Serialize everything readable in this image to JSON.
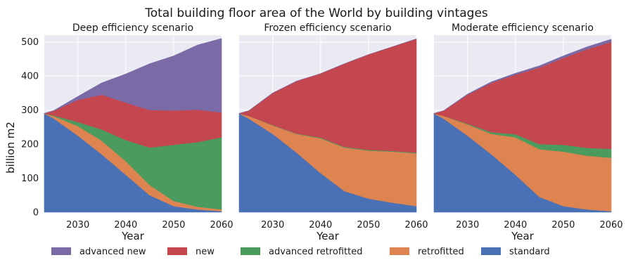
{
  "title": "Total building floor area of the World by building vintages",
  "ylabel": "billion m2",
  "xlabel": "Year",
  "legend": [
    {
      "key": "advanced_new",
      "label": "advanced new",
      "color": "#7a6aa6"
    },
    {
      "key": "new",
      "label": "new",
      "color": "#c44750"
    },
    {
      "key": "advanced_retrofitted",
      "label": "advanced retrofitted",
      "color": "#4a9b5d"
    },
    {
      "key": "retrofitted",
      "label": "retrofitted",
      "color": "#dd8451"
    },
    {
      "key": "standard",
      "label": "standard",
      "color": "#4a71b5"
    }
  ],
  "chart_data": [
    {
      "type": "area",
      "title": "Deep efficiency scenario",
      "x": [
        2023,
        2025,
        2030,
        2035,
        2040,
        2045,
        2050,
        2055,
        2060
      ],
      "xticks": [
        2030,
        2040,
        2050,
        2060
      ],
      "yticks": [
        0,
        100,
        200,
        300,
        400,
        500
      ],
      "ylim": [
        0,
        520
      ],
      "xlim": [
        2023,
        2060
      ],
      "stacked": true,
      "series": [
        {
          "name": "standard",
          "values": [
            290,
            275,
            225,
            170,
            110,
            50,
            18,
            8,
            3
          ]
        },
        {
          "name": "retrofitted",
          "values": [
            0,
            7,
            28,
            40,
            40,
            30,
            15,
            8,
            5
          ]
        },
        {
          "name": "advanced retrofitted",
          "values": [
            0,
            2,
            12,
            33,
            62,
            110,
            165,
            190,
            212
          ]
        },
        {
          "name": "new",
          "values": [
            0,
            14,
            65,
            102,
            110,
            110,
            101,
            95,
            73
          ]
        },
        {
          "name": "advanced new",
          "values": [
            0,
            1,
            10,
            35,
            84,
            136,
            160,
            190,
            217
          ]
        }
      ]
    },
    {
      "type": "area",
      "title": "Frozen efficiency scenario",
      "x": [
        2023,
        2025,
        2030,
        2035,
        2040,
        2045,
        2050,
        2055,
        2060
      ],
      "xticks": [
        2030,
        2040,
        2050,
        2060
      ],
      "yticks": [
        0,
        100,
        200,
        300,
        400,
        500
      ],
      "ylim": [
        0,
        520
      ],
      "xlim": [
        2023,
        2060
      ],
      "stacked": true,
      "series": [
        {
          "name": "standard",
          "values": [
            290,
            275,
            230,
            175,
            115,
            62,
            40,
            28,
            18
          ]
        },
        {
          "name": "retrofitted",
          "values": [
            0,
            8,
            25,
            55,
            102,
            128,
            141,
            150,
            155
          ]
        },
        {
          "name": "advanced retrofitted",
          "values": [
            0,
            0,
            1,
            1,
            2,
            2,
            2,
            2,
            2
          ]
        },
        {
          "name": "new",
          "values": [
            0,
            15,
            94,
            154,
            188,
            244,
            280,
            306,
            334
          ]
        },
        {
          "name": "advanced new",
          "values": [
            0,
            0,
            0,
            0,
            0,
            0,
            0,
            0,
            0
          ]
        }
      ]
    },
    {
      "type": "area",
      "title": "Moderate efficiency scenario",
      "x": [
        2023,
        2025,
        2030,
        2035,
        2040,
        2045,
        2050,
        2055,
        2060
      ],
      "xticks": [
        2030,
        2040,
        2050,
        2060
      ],
      "yticks": [
        0,
        100,
        200,
        300,
        400,
        500
      ],
      "ylim": [
        0,
        520
      ],
      "xlim": [
        2023,
        2060
      ],
      "stacked": true,
      "series": [
        {
          "name": "standard",
          "values": [
            290,
            275,
            225,
            170,
            110,
            45,
            18,
            8,
            3
          ]
        },
        {
          "name": "retrofitted",
          "values": [
            0,
            8,
            33,
            60,
            110,
            140,
            160,
            158,
            157
          ]
        },
        {
          "name": "advanced retrofitted",
          "values": [
            0,
            0,
            2,
            5,
            9,
            15,
            20,
            23,
            26
          ]
        },
        {
          "name": "new",
          "values": [
            0,
            15,
            85,
            145,
            175,
            225,
            255,
            290,
            314
          ]
        },
        {
          "name": "advanced new",
          "values": [
            0,
            0,
            2,
            3,
            4,
            5,
            6,
            7,
            8
          ]
        }
      ]
    }
  ]
}
